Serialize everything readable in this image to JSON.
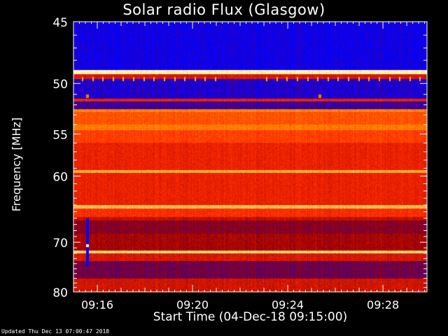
{
  "chart_data": {
    "type": "heatmap",
    "title": "Solar radio Flux (Glasgow)",
    "xlabel": "Start Time (04-Dec-18 09:15:00)",
    "ylabel": "Frequency [MHz]",
    "x_ticks": [
      "09:16",
      "09:20",
      "09:24",
      "09:28"
    ],
    "x_tick_minutes": [
      1.0,
      5.0,
      9.0,
      13.0
    ],
    "xlim_minutes": [
      0.0,
      14.85
    ],
    "y_ticks": [
      45,
      50,
      55,
      60,
      70,
      80
    ],
    "ylim_mhz": [
      45,
      80
    ],
    "y_scale": "reciprocal",
    "colormap": [
      "#0000ff",
      "#9b0000",
      "#ff2a00",
      "#ff8f00",
      "#ffffc0"
    ],
    "grid": false,
    "bands": [
      {
        "f0": 45.0,
        "f1": 48.8,
        "level": 0.02
      },
      {
        "f0": 48.8,
        "f1": 49.2,
        "level": 0.98
      },
      {
        "f0": 49.2,
        "f1": 49.6,
        "level": 0.4
      },
      {
        "f0": 49.6,
        "f1": 51.4,
        "level": 0.05
      },
      {
        "f0": 51.4,
        "f1": 51.7,
        "level": 0.45
      },
      {
        "f0": 51.7,
        "f1": 52.4,
        "level": 0.1
      },
      {
        "f0": 52.4,
        "f1": 52.7,
        "level": 0.72
      },
      {
        "f0": 52.7,
        "f1": 54.0,
        "level": 0.6
      },
      {
        "f0": 54.0,
        "f1": 54.6,
        "level": 0.7
      },
      {
        "f0": 54.6,
        "f1": 56.0,
        "level": 0.55
      },
      {
        "f0": 56.0,
        "f1": 59.2,
        "level": 0.45
      },
      {
        "f0": 59.2,
        "f1": 59.6,
        "level": 0.82
      },
      {
        "f0": 59.6,
        "f1": 64.0,
        "level": 0.45
      },
      {
        "f0": 64.0,
        "f1": 64.5,
        "level": 0.85
      },
      {
        "f0": 64.5,
        "f1": 65.8,
        "level": 0.5
      },
      {
        "f0": 65.8,
        "f1": 66.4,
        "level": 0.35
      },
      {
        "f0": 66.4,
        "f1": 68.5,
        "level": 0.22
      },
      {
        "f0": 68.5,
        "f1": 71.5,
        "level": 0.28
      },
      {
        "f0": 71.5,
        "f1": 72.0,
        "level": 0.9
      },
      {
        "f0": 72.0,
        "f1": 73.5,
        "level": 0.4
      },
      {
        "f0": 73.5,
        "f1": 77.0,
        "level": 0.18
      },
      {
        "f0": 77.0,
        "f1": 80.0,
        "level": 0.38
      }
    ],
    "events": [
      {
        "minute": 0.52,
        "f0": 66.0,
        "f1": 74.5,
        "level": 0.0
      },
      {
        "minute": 0.52,
        "f0": 70.3,
        "f1": 70.8,
        "level": 1.0
      },
      {
        "minute": 0.52,
        "f0": 51.0,
        "f1": 51.3,
        "level": 0.7
      },
      {
        "minute": 10.3,
        "f0": 51.0,
        "f1": 51.3,
        "level": 0.7
      }
    ]
  },
  "footer": "Updated Thu Dec 13 07:00:47 2018"
}
